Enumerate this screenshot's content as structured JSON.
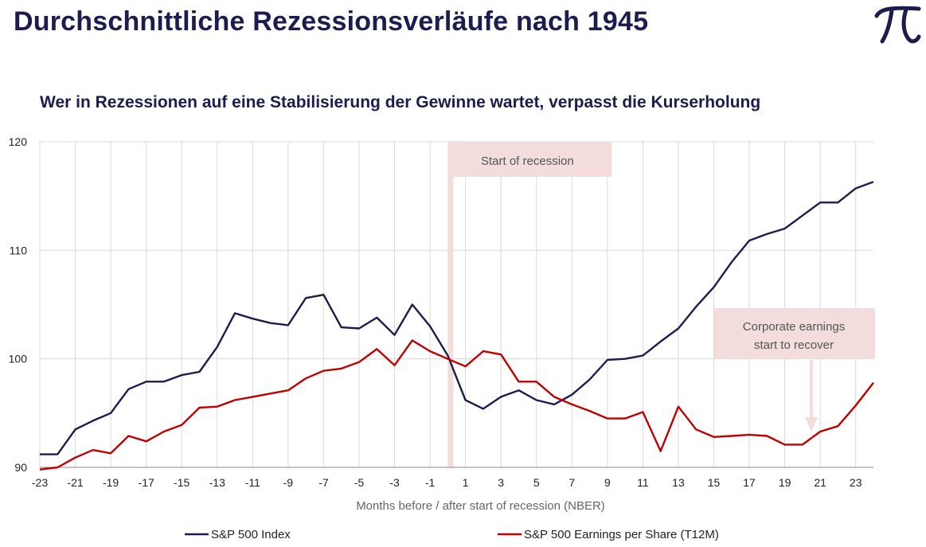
{
  "page": {
    "title": "Durchschnittliche Rezessionsverläufe nach 1945",
    "subtitle": "Wer in Rezessionen auf eine Stabilisierung der Gewinne wartet, verpasst die Kurserholung"
  },
  "colors": {
    "title": "#1c1c4f",
    "sp500_index": "#1c1c4f",
    "sp500_eps": "#c00000",
    "annotation_band": "#f2dcdc",
    "grid": "#d9d9d9"
  },
  "chart_data": {
    "type": "line",
    "title": "",
    "xlabel": "Months before / after start of recession (NBER)",
    "ylabel": "",
    "xlim": [
      -23,
      24
    ],
    "ylim": [
      90,
      120
    ],
    "x_tick_labels": [
      "-23",
      "-21",
      "-19",
      "-17",
      "-15",
      "-13",
      "-11",
      "-9",
      "-7",
      "-5",
      "-3",
      "-1",
      "1",
      "3",
      "5",
      "7",
      "9",
      "11",
      "13",
      "15",
      "17",
      "19",
      "21",
      "23"
    ],
    "y_tick_labels": [
      "90",
      "100",
      "110",
      "120"
    ],
    "grid": true,
    "legend_position": "bottom",
    "x": [
      -23,
      -22,
      -21,
      -20,
      -19,
      -18,
      -17,
      -16,
      -15,
      -14,
      -13,
      -12,
      -11,
      -10,
      -9,
      -8,
      -7,
      -6,
      -5,
      -4,
      -3,
      -2,
      -1,
      0,
      1,
      2,
      3,
      4,
      5,
      6,
      7,
      8,
      9,
      10,
      11,
      12,
      13,
      14,
      15,
      16,
      17,
      18,
      19,
      20,
      21,
      22,
      23,
      24
    ],
    "series": [
      {
        "name": "S&P 500 Index",
        "values": [
          91.2,
          91.2,
          93.5,
          94.3,
          95.0,
          97.2,
          97.9,
          97.9,
          98.5,
          98.8,
          101.1,
          104.2,
          103.7,
          103.3,
          103.1,
          105.6,
          105.9,
          102.9,
          102.8,
          103.8,
          102.2,
          105.0,
          103.0,
          100.3,
          96.2,
          95.4,
          96.5,
          97.1,
          96.2,
          95.8,
          96.7,
          98.1,
          99.9,
          100.0,
          100.3,
          101.6,
          102.8,
          104.8,
          106.6,
          108.9,
          110.9,
          111.5,
          112.0,
          113.2,
          114.4,
          114.4,
          115.7,
          116.3
        ]
      },
      {
        "name": "S&P 500 Earnings per Share (T12M)",
        "values": [
          89.8,
          90.0,
          90.9,
          91.6,
          91.3,
          92.9,
          92.4,
          93.3,
          93.9,
          95.5,
          95.6,
          96.2,
          96.5,
          96.8,
          97.1,
          98.2,
          98.9,
          99.1,
          99.7,
          100.9,
          99.4,
          101.7,
          100.7,
          100.0,
          99.3,
          100.7,
          100.4,
          97.9,
          97.9,
          96.5,
          95.8,
          95.2,
          94.5,
          94.5,
          95.1,
          91.5,
          95.6,
          93.5,
          92.8,
          92.9,
          93.0,
          92.9,
          92.1,
          92.1,
          93.3,
          93.8,
          95.7,
          97.8
        ]
      }
    ],
    "annotations": [
      {
        "text": "Start of recession",
        "x": 0
      },
      {
        "text_line1": "Corporate earnings",
        "text_line2": "start to recover",
        "x": 20.5
      }
    ]
  }
}
